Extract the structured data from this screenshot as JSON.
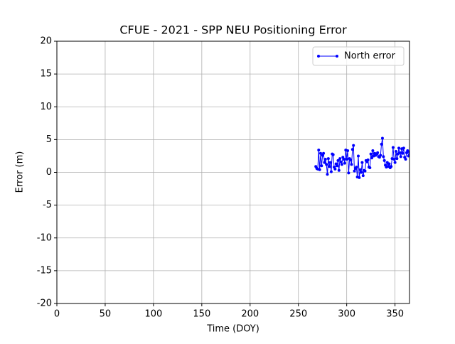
{
  "chart_data": {
    "type": "line",
    "title": "CFUE - 2021 - SPP NEU Positioning Error",
    "x_label": "Time (DOY)",
    "y_label": "Error (m)",
    "x": [
      268,
      269,
      270,
      271,
      272,
      273,
      274,
      275,
      276,
      277,
      278,
      279,
      280,
      281,
      282,
      283,
      284,
      285,
      286,
      287,
      288,
      289,
      290,
      291,
      292,
      293,
      294,
      295,
      296,
      297,
      298,
      299,
      300,
      301,
      302,
      303,
      304,
      305,
      306,
      307,
      308,
      309,
      310,
      311,
      312,
      313,
      314,
      315,
      316,
      317,
      318,
      319,
      320,
      321,
      322,
      323,
      324,
      325,
      326,
      327,
      328,
      329,
      330,
      331,
      332,
      333,
      334,
      335,
      336,
      337,
      338,
      339,
      340,
      341,
      342,
      343,
      344,
      345,
      346,
      347,
      348,
      349,
      350,
      351,
      352,
      353,
      354,
      355,
      356,
      357,
      358,
      359,
      360,
      361,
      362,
      363,
      364,
      365
    ],
    "series": [
      {
        "name": "North error",
        "color": "#0000ff",
        "values": [
          0.9,
          0.6,
          0.5,
          3.4,
          0.4,
          2.9,
          1.0,
          2.6,
          2.9,
          1.5,
          2.0,
          1.2,
          -0.3,
          2.1,
          0.9,
          1.5,
          0.1,
          2.8,
          2.7,
          0.8,
          0.5,
          1.3,
          1.0,
          1.8,
          0.3,
          2.1,
          1.6,
          1.2,
          2.3,
          2.0,
          1.4,
          3.4,
          2.0,
          3.3,
          -0.1,
          2.1,
          1.9,
          1.2,
          3.5,
          4.1,
          0.2,
          0.6,
          0.8,
          -0.7,
          2.5,
          -0.8,
          0.4,
          0.0,
          1.5,
          -0.5,
          0.3,
          0.2,
          1.8,
          1.6,
          1.9,
          0.8,
          0.7,
          2.8,
          2.2,
          3.3,
          2.5,
          2.9,
          2.6,
          2.8,
          3.0,
          2.4,
          2.3,
          2.6,
          4.3,
          5.2,
          2.4,
          1.8,
          1.1,
          0.8,
          1.5,
          0.9,
          1.3,
          0.7,
          0.9,
          2.1,
          3.8,
          2.0,
          1.5,
          3.2,
          2.1,
          2.8,
          3.7,
          3.0,
          2.4,
          3.6,
          2.9,
          3.7,
          2.3,
          2.0,
          3.0,
          3.3,
          2.5,
          3.1
        ]
      }
    ],
    "xlim": [
      0,
      365
    ],
    "ylim": [
      -20,
      20
    ],
    "xticks": [
      0,
      50,
      100,
      150,
      200,
      250,
      300,
      350
    ],
    "yticks": [
      -20,
      -15,
      -10,
      -5,
      0,
      5,
      10,
      15,
      20
    ],
    "grid": true,
    "legend": "upper-right"
  }
}
